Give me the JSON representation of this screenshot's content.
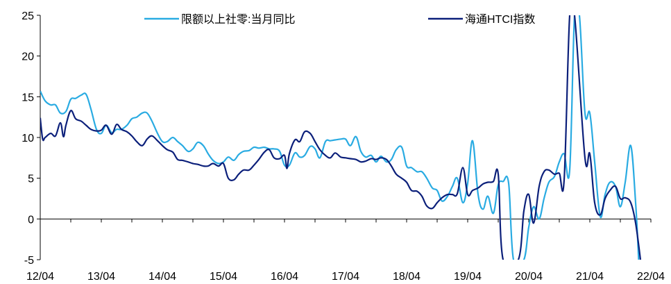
{
  "chart_data": {
    "type": "line",
    "title": "",
    "xlabel": "",
    "ylabel": "",
    "ylim": [
      -5,
      25
    ],
    "xlim": [
      2012.25,
      2022.25
    ],
    "yticks": [
      -5,
      0,
      5,
      10,
      15,
      20,
      25
    ],
    "xticks": [
      {
        "x": 2012.25,
        "label": "12/04"
      },
      {
        "x": 2013.25,
        "label": "13/04"
      },
      {
        "x": 2014.25,
        "label": "14/04"
      },
      {
        "x": 2015.25,
        "label": "15/04"
      },
      {
        "x": 2016.25,
        "label": "16/04"
      },
      {
        "x": 2017.25,
        "label": "17/04"
      },
      {
        "x": 2018.25,
        "label": "18/04"
      },
      {
        "x": 2019.25,
        "label": "19/04"
      },
      {
        "x": 2020.25,
        "label": "20/04"
      },
      {
        "x": 2021.25,
        "label": "21/04"
      },
      {
        "x": 2022.25,
        "label": "22/04"
      }
    ],
    "grid": false,
    "legend_position": "top",
    "series": [
      {
        "name": "限额以上社零:当月同比",
        "color": "#29ABE2",
        "points": [
          [
            2012.25,
            15.7
          ],
          [
            2012.33,
            14.5
          ],
          [
            2012.42,
            14.0
          ],
          [
            2012.5,
            14.0
          ],
          [
            2012.58,
            13.0
          ],
          [
            2012.67,
            13.2
          ],
          [
            2012.75,
            14.7
          ],
          [
            2012.83,
            14.8
          ],
          [
            2012.92,
            15.2
          ],
          [
            2013.0,
            15.3
          ],
          [
            2013.08,
            13.5
          ],
          [
            2013.17,
            11.0
          ],
          [
            2013.25,
            10.5
          ],
          [
            2013.33,
            11.5
          ],
          [
            2013.42,
            10.6
          ],
          [
            2013.5,
            11.0
          ],
          [
            2013.58,
            11.0
          ],
          [
            2013.67,
            11.5
          ],
          [
            2013.75,
            12.3
          ],
          [
            2013.83,
            12.5
          ],
          [
            2013.92,
            13.0
          ],
          [
            2014.0,
            13.0
          ],
          [
            2014.08,
            12.0
          ],
          [
            2014.17,
            10.5
          ],
          [
            2014.25,
            9.5
          ],
          [
            2014.33,
            9.5
          ],
          [
            2014.42,
            10.0
          ],
          [
            2014.5,
            9.5
          ],
          [
            2014.58,
            9.0
          ],
          [
            2014.67,
            8.3
          ],
          [
            2014.75,
            8.6
          ],
          [
            2014.83,
            9.4
          ],
          [
            2014.92,
            9.0
          ],
          [
            2015.0,
            8.0
          ],
          [
            2015.08,
            7.2
          ],
          [
            2015.17,
            6.8
          ],
          [
            2015.25,
            7.0
          ],
          [
            2015.33,
            7.6
          ],
          [
            2015.42,
            7.2
          ],
          [
            2015.5,
            7.9
          ],
          [
            2015.58,
            8.3
          ],
          [
            2015.67,
            8.4
          ],
          [
            2015.75,
            8.8
          ],
          [
            2015.83,
            8.7
          ],
          [
            2015.92,
            8.8
          ],
          [
            2016.0,
            8.6
          ],
          [
            2016.08,
            8.6
          ],
          [
            2016.17,
            8.3
          ],
          [
            2016.25,
            6.6
          ],
          [
            2016.33,
            6.6
          ],
          [
            2016.42,
            8.1
          ],
          [
            2016.5,
            7.6
          ],
          [
            2016.58,
            7.8
          ],
          [
            2016.67,
            8.9
          ],
          [
            2016.75,
            8.6
          ],
          [
            2016.83,
            7.5
          ],
          [
            2016.92,
            9.5
          ],
          [
            2017.0,
            9.6
          ],
          [
            2017.08,
            9.7
          ],
          [
            2017.17,
            9.8
          ],
          [
            2017.25,
            9.8
          ],
          [
            2017.33,
            9.0
          ],
          [
            2017.42,
            10.1
          ],
          [
            2017.5,
            8.3
          ],
          [
            2017.58,
            7.6
          ],
          [
            2017.67,
            7.8
          ],
          [
            2017.75,
            7.0
          ],
          [
            2017.83,
            7.7
          ],
          [
            2017.92,
            7.0
          ],
          [
            2018.0,
            7.3
          ],
          [
            2018.08,
            8.5
          ],
          [
            2018.17,
            8.8
          ],
          [
            2018.25,
            6.5
          ],
          [
            2018.33,
            6.3
          ],
          [
            2018.42,
            5.8
          ],
          [
            2018.5,
            5.8
          ],
          [
            2018.58,
            5.0
          ],
          [
            2018.67,
            3.8
          ],
          [
            2018.75,
            3.5
          ],
          [
            2018.83,
            2.2
          ],
          [
            2018.92,
            2.8
          ],
          [
            2019.0,
            4.0
          ],
          [
            2019.08,
            5.0
          ],
          [
            2019.17,
            2.0
          ],
          [
            2019.25,
            4.4
          ],
          [
            2019.33,
            9.6
          ],
          [
            2019.42,
            3.0
          ],
          [
            2019.5,
            1.2
          ],
          [
            2019.58,
            2.8
          ],
          [
            2019.67,
            0.7
          ],
          [
            2019.75,
            4.2
          ],
          [
            2019.83,
            4.6
          ],
          [
            2019.92,
            4.4
          ],
          [
            2020.0,
            -5.0
          ],
          [
            2020.17,
            -5.0
          ],
          [
            2020.25,
            -1.0
          ],
          [
            2020.33,
            1.5
          ],
          [
            2020.42,
            0.0
          ],
          [
            2020.5,
            2.5
          ],
          [
            2020.58,
            4.5
          ],
          [
            2020.67,
            5.2
          ],
          [
            2020.75,
            7.0
          ],
          [
            2020.83,
            8.0
          ],
          [
            2020.92,
            6.0
          ],
          [
            2021.0,
            25.0
          ],
          [
            2021.08,
            25.0
          ],
          [
            2021.17,
            13.0
          ],
          [
            2021.25,
            13.0
          ],
          [
            2021.33,
            7.0
          ],
          [
            2021.42,
            0.3
          ],
          [
            2021.5,
            3.0
          ],
          [
            2021.58,
            4.5
          ],
          [
            2021.67,
            4.0
          ],
          [
            2021.75,
            1.5
          ],
          [
            2021.83,
            4.5
          ],
          [
            2021.92,
            9.0
          ],
          [
            2022.0,
            2.0
          ],
          [
            2022.05,
            -5.0
          ]
        ]
      },
      {
        "name": "海通HTCI指数",
        "color": "#0B1F7A",
        "points": [
          [
            2012.25,
            12.4
          ],
          [
            2012.29,
            9.8
          ],
          [
            2012.33,
            10.0
          ],
          [
            2012.42,
            10.5
          ],
          [
            2012.5,
            10.2
          ],
          [
            2012.58,
            11.8
          ],
          [
            2012.63,
            10.1
          ],
          [
            2012.67,
            11.5
          ],
          [
            2012.75,
            13.3
          ],
          [
            2012.83,
            12.3
          ],
          [
            2012.92,
            12.0
          ],
          [
            2013.0,
            11.5
          ],
          [
            2013.08,
            11.0
          ],
          [
            2013.17,
            10.8
          ],
          [
            2013.25,
            10.9
          ],
          [
            2013.33,
            11.5
          ],
          [
            2013.42,
            10.4
          ],
          [
            2013.5,
            11.6
          ],
          [
            2013.58,
            11.0
          ],
          [
            2013.67,
            10.7
          ],
          [
            2013.75,
            10.2
          ],
          [
            2013.83,
            9.5
          ],
          [
            2013.92,
            9.0
          ],
          [
            2014.0,
            9.8
          ],
          [
            2014.08,
            10.2
          ],
          [
            2014.17,
            9.6
          ],
          [
            2014.25,
            9.0
          ],
          [
            2014.33,
            8.5
          ],
          [
            2014.42,
            8.2
          ],
          [
            2014.5,
            7.3
          ],
          [
            2014.58,
            7.2
          ],
          [
            2014.67,
            7.0
          ],
          [
            2014.75,
            6.8
          ],
          [
            2014.83,
            6.7
          ],
          [
            2014.92,
            6.5
          ],
          [
            2015.0,
            6.5
          ],
          [
            2015.08,
            6.8
          ],
          [
            2015.17,
            6.5
          ],
          [
            2015.25,
            6.8
          ],
          [
            2015.33,
            5.0
          ],
          [
            2015.42,
            4.8
          ],
          [
            2015.5,
            5.5
          ],
          [
            2015.58,
            6.0
          ],
          [
            2015.67,
            6.0
          ],
          [
            2015.75,
            6.6
          ],
          [
            2015.83,
            7.3
          ],
          [
            2015.92,
            8.2
          ],
          [
            2016.0,
            8.5
          ],
          [
            2016.08,
            7.5
          ],
          [
            2016.17,
            7.4
          ],
          [
            2016.25,
            7.8
          ],
          [
            2016.29,
            6.2
          ],
          [
            2016.33,
            8.0
          ],
          [
            2016.42,
            9.7
          ],
          [
            2016.5,
            9.5
          ],
          [
            2016.58,
            10.7
          ],
          [
            2016.67,
            10.5
          ],
          [
            2016.75,
            9.5
          ],
          [
            2016.83,
            8.5
          ],
          [
            2016.92,
            7.8
          ],
          [
            2017.0,
            7.5
          ],
          [
            2017.08,
            8.1
          ],
          [
            2017.17,
            7.6
          ],
          [
            2017.25,
            7.5
          ],
          [
            2017.33,
            7.4
          ],
          [
            2017.42,
            7.3
          ],
          [
            2017.5,
            7.0
          ],
          [
            2017.58,
            7.1
          ],
          [
            2017.67,
            7.4
          ],
          [
            2017.75,
            7.3
          ],
          [
            2017.83,
            7.5
          ],
          [
            2017.92,
            7.3
          ],
          [
            2018.0,
            6.5
          ],
          [
            2018.08,
            5.5
          ],
          [
            2018.17,
            5.0
          ],
          [
            2018.25,
            4.5
          ],
          [
            2018.33,
            3.5
          ],
          [
            2018.42,
            3.4
          ],
          [
            2018.5,
            2.8
          ],
          [
            2018.58,
            1.6
          ],
          [
            2018.67,
            1.3
          ],
          [
            2018.75,
            2.0
          ],
          [
            2018.83,
            2.6
          ],
          [
            2018.92,
            3.0
          ],
          [
            2019.0,
            3.0
          ],
          [
            2019.08,
            3.1
          ],
          [
            2019.17,
            6.3
          ],
          [
            2019.25,
            3.0
          ],
          [
            2019.33,
            3.5
          ],
          [
            2019.42,
            3.8
          ],
          [
            2019.5,
            4.3
          ],
          [
            2019.58,
            4.5
          ],
          [
            2019.67,
            4.6
          ],
          [
            2019.75,
            5.5
          ],
          [
            2019.83,
            -5.0
          ],
          [
            2020.08,
            -5.0
          ],
          [
            2020.17,
            1.0
          ],
          [
            2020.25,
            3.0
          ],
          [
            2020.33,
            -0.5
          ],
          [
            2020.42,
            4.0
          ],
          [
            2020.5,
            5.8
          ],
          [
            2020.58,
            6.0
          ],
          [
            2020.67,
            5.5
          ],
          [
            2020.75,
            5.6
          ],
          [
            2020.83,
            4.8
          ],
          [
            2020.92,
            25.0
          ],
          [
            2021.0,
            25.0
          ],
          [
            2021.17,
            7.5
          ],
          [
            2021.25,
            8.0
          ],
          [
            2021.33,
            2.0
          ],
          [
            2021.42,
            0.5
          ],
          [
            2021.5,
            2.5
          ],
          [
            2021.58,
            3.5
          ],
          [
            2021.67,
            4.0
          ],
          [
            2021.75,
            2.5
          ],
          [
            2021.83,
            2.6
          ],
          [
            2021.92,
            2.0
          ],
          [
            2022.0,
            -0.5
          ],
          [
            2022.08,
            -5.0
          ]
        ]
      }
    ]
  }
}
